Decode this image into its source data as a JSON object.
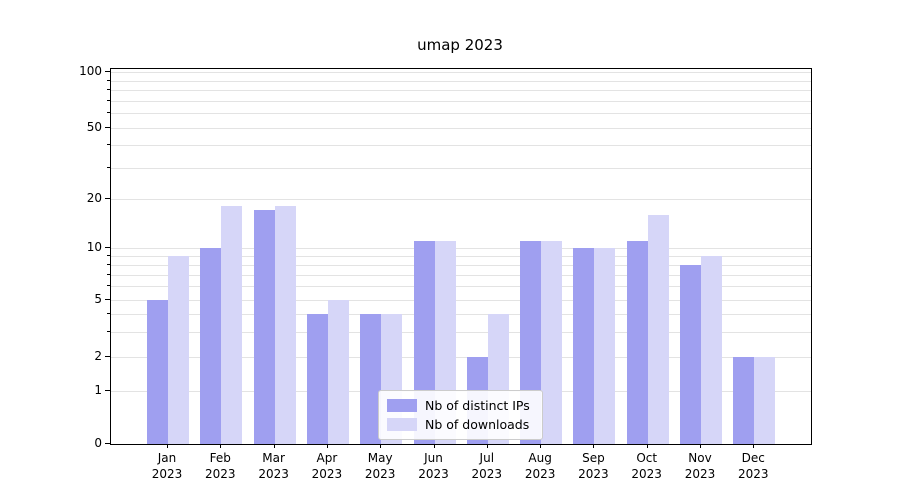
{
  "title": "umap 2023",
  "chart_data": {
    "type": "bar",
    "title": "umap 2023",
    "categories": [
      "Jan",
      "Feb",
      "Mar",
      "Apr",
      "May",
      "Jun",
      "Jul",
      "Aug",
      "Sep",
      "Oct",
      "Nov",
      "Dec"
    ],
    "year": "2023",
    "series": [
      {
        "name": "Nb of distinct IPs",
        "color": "#9f9ff0",
        "values": [
          5,
          10,
          17,
          4,
          4,
          11,
          2,
          11,
          10,
          11,
          8,
          2
        ]
      },
      {
        "name": "Nb of downloads",
        "color": "#d6d6f8",
        "values": [
          9,
          18,
          18,
          5,
          4,
          11,
          4,
          11,
          10,
          16,
          9,
          2
        ]
      }
    ],
    "yscale": "symlog",
    "y_ticks": [
      0,
      1,
      2,
      5,
      10,
      20,
      50,
      100
    ],
    "y_minor_grid": [
      3,
      4,
      6,
      7,
      8,
      9,
      30,
      40,
      60,
      70,
      80,
      90
    ],
    "ylim": [
      0,
      100
    ],
    "grid": "horizontal",
    "legend_position": "lower-center-inside"
  }
}
